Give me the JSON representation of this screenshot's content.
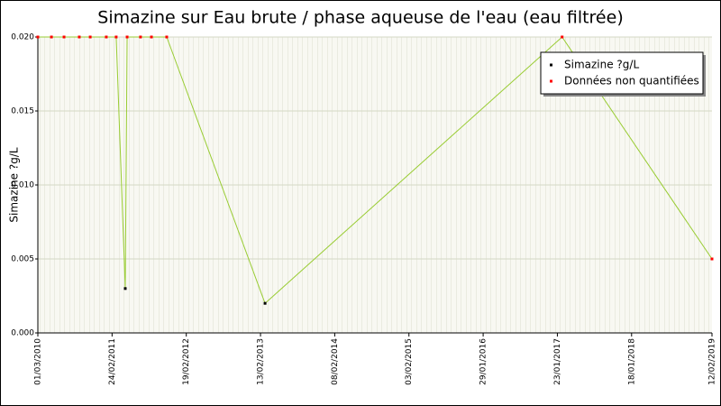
{
  "chart_data": {
    "type": "line",
    "title": "Simazine sur Eau brute / phase aqueuse de l'eau (eau filtrée)",
    "y_label": "Simazine ?g/L",
    "x": [
      "2010-03-01",
      "2010-05-06",
      "2010-07-06",
      "2010-09-18",
      "2010-11-10",
      "2011-01-27",
      "2011-03-16",
      "2011-04-29",
      "2011-05-08",
      "2011-07-12",
      "2011-09-03",
      "2011-11-16",
      "2013-03-07",
      "2017-02-15",
      "2019-02-12"
    ],
    "series": [
      {
        "name": "Simazine ?g/L",
        "color": "#000000",
        "values": [
          null,
          null,
          null,
          null,
          null,
          null,
          null,
          0.003,
          null,
          null,
          null,
          null,
          0.002,
          null,
          null
        ]
      },
      {
        "name": "Données non quantifiées",
        "color": "#ff0000",
        "values": [
          0.02,
          0.02,
          0.02,
          0.02,
          0.02,
          0.02,
          0.02,
          null,
          0.02,
          0.02,
          0.02,
          0.02,
          null,
          0.02,
          0.005
        ]
      }
    ],
    "line_color": "#99cc33",
    "xlim": [
      "2010-03-01",
      "2019-02-12"
    ],
    "xticks": [
      {
        "value": "2010-03-01",
        "label": "01/03/2010"
      },
      {
        "value": "2011-02-24",
        "label": "24/02/2011"
      },
      {
        "value": "2012-02-19",
        "label": "19/02/2012"
      },
      {
        "value": "2013-02-13",
        "label": "13/02/2013"
      },
      {
        "value": "2014-02-08",
        "label": "08/02/2014"
      },
      {
        "value": "2015-02-03",
        "label": "03/02/2015"
      },
      {
        "value": "2016-01-29",
        "label": "29/01/2016"
      },
      {
        "value": "2017-01-23",
        "label": "23/01/2017"
      },
      {
        "value": "2018-01-18",
        "label": "18/01/2018"
      },
      {
        "value": "2019-02-12",
        "label": "12/02/2019"
      }
    ],
    "ylim": [
      0,
      0.02
    ],
    "yticks": [
      {
        "value": 0,
        "label": "0.000"
      },
      {
        "value": 0.005,
        "label": "0.005"
      },
      {
        "value": 0.01,
        "label": "0.010"
      },
      {
        "value": 0.015,
        "label": "0.015"
      },
      {
        "value": 0.02,
        "label": "0.020"
      }
    ],
    "grid": true,
    "legend_position": "upper right"
  }
}
